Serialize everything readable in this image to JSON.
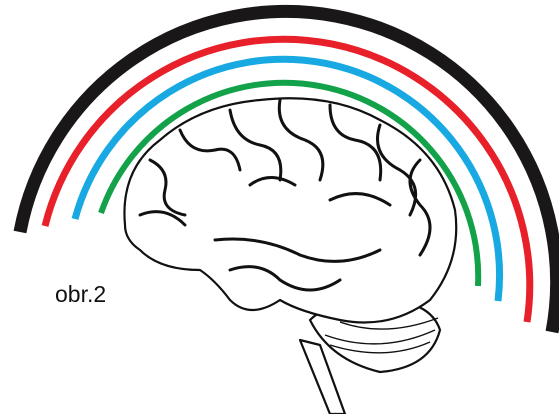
{
  "caption": "obr.2"
}
